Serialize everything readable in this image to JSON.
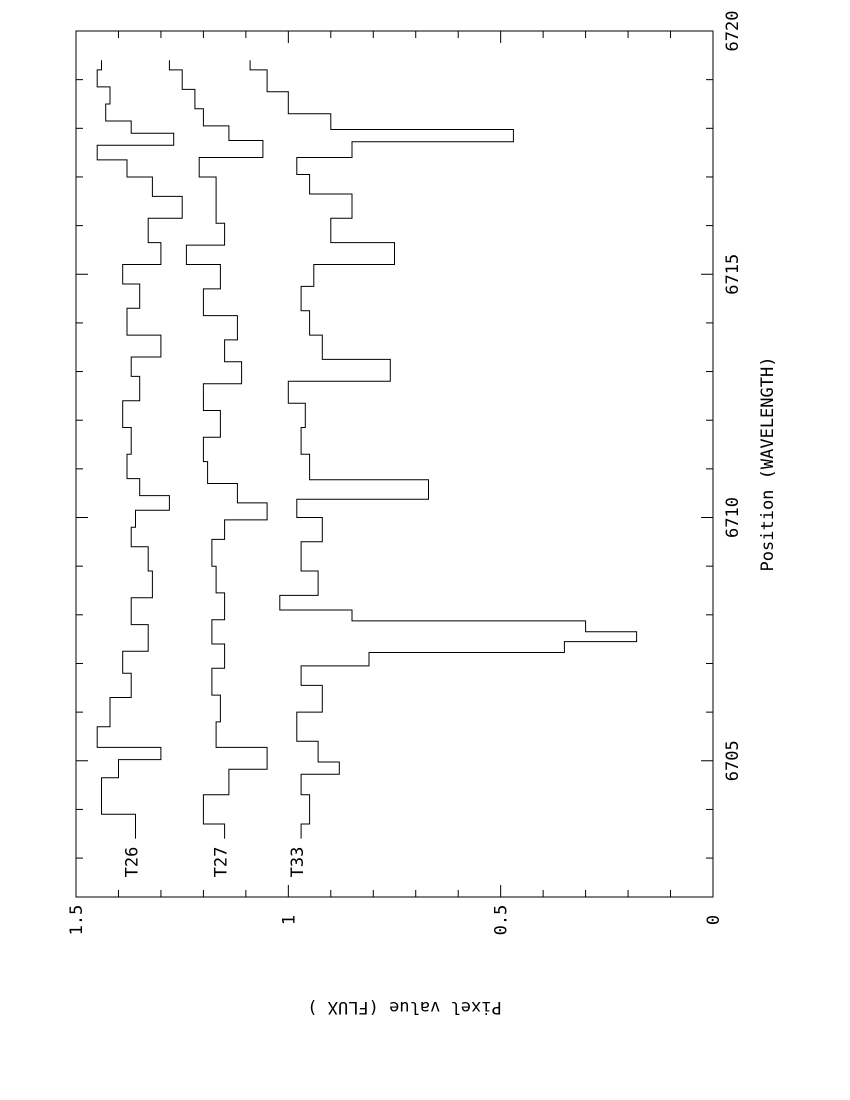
{
  "chart_data": {
    "type": "line",
    "orientation": "rotated-90-ccw",
    "line_style": "step",
    "xlabel": "Position (WAVELENGTH)",
    "ylabel": "Pixel value (FLUX )",
    "xlim": [
      6702.2,
      6720
    ],
    "ylim": [
      0,
      1.5
    ],
    "x_ticks": [
      "6705",
      "6710",
      "6715",
      "6720"
    ],
    "y_ticks": [
      "0",
      "0.5",
      "1",
      "1.5"
    ],
    "grid": false,
    "series": [
      {
        "name": "T26",
        "x": [
          6703.4,
          6704.4,
          6704.9,
          6705.15,
          6705.4,
          6706.0,
          6706.6,
          6707.0,
          6707.5,
          6708.1,
          6708.6,
          6709.2,
          6709.6,
          6710.0,
          6710.3,
          6710.6,
          6711.0,
          6711.6,
          6712.1,
          6712.7,
          6713.1,
          6713.5,
          6714.0,
          6714.6,
          6715.0,
          6715.4,
          6715.9,
          6716.4,
          6716.8,
          6717.2,
          6717.5,
          6717.8,
          6718.0,
          6718.3,
          6718.7,
          6719.0,
          6719.4
        ],
        "y": [
          1.36,
          1.44,
          1.4,
          1.3,
          1.45,
          1.42,
          1.37,
          1.39,
          1.33,
          1.37,
          1.32,
          1.33,
          1.37,
          1.36,
          1.28,
          1.35,
          1.38,
          1.37,
          1.39,
          1.35,
          1.37,
          1.3,
          1.38,
          1.35,
          1.39,
          1.3,
          1.33,
          1.25,
          1.32,
          1.38,
          1.45,
          1.27,
          1.37,
          1.43,
          1.42,
          1.45,
          1.44
        ]
      },
      {
        "name": "T27",
        "x": [
          6703.4,
          6704.0,
          6704.6,
          6705.05,
          6705.5,
          6706.1,
          6706.6,
          6707.2,
          6707.6,
          6708.2,
          6708.7,
          6709.3,
          6709.8,
          6710.1,
          6710.5,
          6710.9,
          6711.4,
          6711.9,
          6712.5,
          6713.0,
          6713.4,
          6713.9,
          6714.4,
          6715.0,
          6715.4,
          6715.8,
          6716.3,
          6716.8,
          6717.2,
          6717.6,
          6717.9,
          6718.2,
          6718.6,
          6719.0,
          6719.4
        ],
        "y": [
          1.15,
          1.2,
          1.14,
          1.05,
          1.17,
          1.16,
          1.18,
          1.15,
          1.18,
          1.15,
          1.17,
          1.18,
          1.15,
          1.05,
          1.12,
          1.19,
          1.2,
          1.16,
          1.2,
          1.11,
          1.15,
          1.12,
          1.2,
          1.16,
          1.24,
          1.15,
          1.17,
          1.17,
          1.21,
          1.06,
          1.14,
          1.2,
          1.22,
          1.25,
          1.28
        ]
      },
      {
        "name": "T33",
        "x": [
          6703.4,
          6704.0,
          6704.6,
          6704.85,
          6705.1,
          6705.7,
          6706.3,
          6706.8,
          6707.1,
          6707.35,
          6707.55,
          6707.75,
          6708.0,
          6708.2,
          6708.6,
          6709.2,
          6709.8,
          6710.2,
          6710.55,
          6711.0,
          6711.6,
          6712.1,
          6712.6,
          6713.0,
          6713.5,
          6714.0,
          6714.5,
          6715.0,
          6715.4,
          6715.9,
          6716.4,
          6716.9,
          6717.2,
          6717.6,
          6717.85,
          6718.1,
          6718.5,
          6719.0,
          6719.4
        ],
        "y": [
          0.97,
          0.95,
          0.97,
          0.88,
          0.93,
          0.98,
          0.92,
          0.97,
          0.81,
          0.35,
          0.18,
          0.3,
          0.85,
          1.02,
          0.93,
          0.97,
          0.92,
          0.98,
          0.67,
          0.95,
          0.97,
          0.96,
          1.0,
          0.76,
          0.92,
          0.95,
          0.97,
          0.94,
          0.75,
          0.9,
          0.85,
          0.95,
          0.98,
          0.85,
          0.47,
          0.9,
          1.0,
          1.05,
          1.09
        ]
      }
    ]
  }
}
